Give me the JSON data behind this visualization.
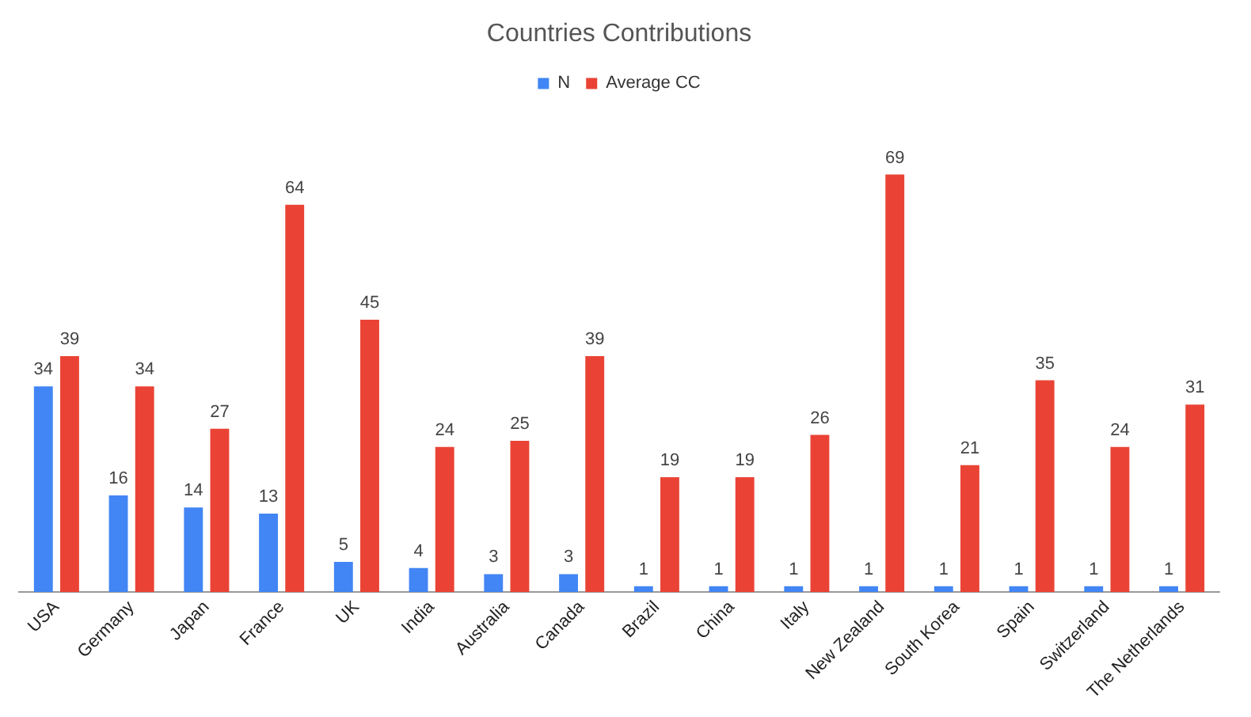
{
  "chart_data": {
    "type": "bar",
    "title": "Countries Contributions",
    "categories": [
      "USA",
      "Germany",
      "Japan",
      "France",
      "UK",
      "India",
      "Australia",
      "Canada",
      "Brazil",
      "China",
      "Italy",
      "New Zealand",
      "South Korea",
      "Spain",
      "Switzerland",
      "The Netherlands"
    ],
    "series": [
      {
        "name": "N",
        "color": "#4285f4",
        "values": [
          34,
          16,
          14,
          13,
          5,
          4,
          3,
          3,
          1,
          1,
          1,
          1,
          1,
          1,
          1,
          1
        ]
      },
      {
        "name": "Average CC",
        "color": "#ea4335",
        "values": [
          39,
          34,
          27,
          64,
          45,
          24,
          25,
          39,
          19,
          19,
          26,
          69,
          21,
          35,
          24,
          31
        ]
      }
    ],
    "data_labels": true,
    "legend": "top",
    "grid": false
  }
}
